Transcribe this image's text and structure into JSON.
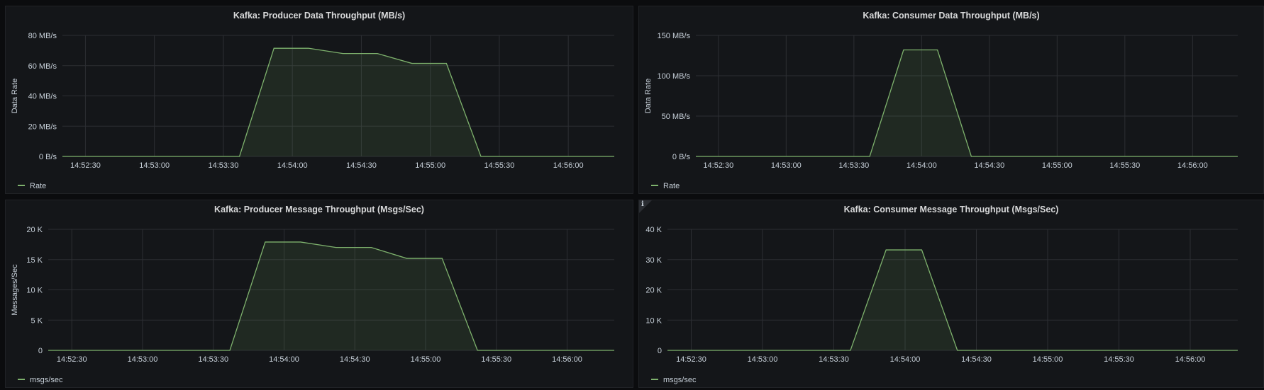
{
  "chart_data": [
    {
      "id": "producer-data",
      "type": "area",
      "title": "Kafka: Producer Data Throughput (MB/s)",
      "ylabel": "Data Rate",
      "y_ticks": [
        "0 B/s",
        "20 MB/s",
        "40 MB/s",
        "60 MB/s",
        "80 MB/s"
      ],
      "ylim": [
        0,
        80
      ],
      "x_ticks": [
        "14:52:30",
        "14:53:00",
        "14:53:30",
        "14:54:00",
        "14:54:30",
        "14:55:00",
        "14:55:30",
        "14:56:00"
      ],
      "series": [
        {
          "name": "Rate",
          "x": [
            "14:52:20",
            "14:53:37",
            "14:53:52",
            "14:54:07",
            "14:54:22",
            "14:54:37",
            "14:54:52",
            "14:55:07",
            "14:55:22",
            "14:56:20"
          ],
          "values": [
            0,
            0,
            71.5,
            71.5,
            68,
            68,
            61.5,
            61.5,
            0,
            0
          ]
        }
      ],
      "colors": {
        "line": "#7eb26d",
        "fill": "rgba(126,178,109,0.12)"
      },
      "legend": "bottom-left",
      "grid": true
    },
    {
      "id": "consumer-data",
      "type": "area",
      "title": "Kafka: Consumer Data Throughput (MB/s)",
      "ylabel": "Data Rate",
      "y_ticks": [
        "0 B/s",
        "50 MB/s",
        "100 MB/s",
        "150 MB/s"
      ],
      "ylim": [
        0,
        150
      ],
      "x_ticks": [
        "14:52:30",
        "14:53:00",
        "14:53:30",
        "14:54:00",
        "14:54:30",
        "14:55:00",
        "14:55:30",
        "14:56:00"
      ],
      "series": [
        {
          "name": "Rate",
          "x": [
            "14:52:20",
            "14:53:37",
            "14:53:52",
            "14:54:07",
            "14:54:22",
            "14:56:20"
          ],
          "values": [
            0,
            0,
            132,
            132,
            0,
            0
          ]
        }
      ],
      "colors": {
        "line": "#7eb26d",
        "fill": "rgba(126,178,109,0.12)"
      },
      "legend": "bottom-left",
      "grid": true
    },
    {
      "id": "producer-msgs",
      "type": "area",
      "title": "Kafka: Producer Message Throughput (Msgs/Sec)",
      "ylabel": "Messages/Sec",
      "y_ticks": [
        "0",
        "5 K",
        "10 K",
        "15 K",
        "20 K"
      ],
      "ylim": [
        0,
        20000
      ],
      "x_ticks": [
        "14:52:30",
        "14:53:00",
        "14:53:30",
        "14:54:00",
        "14:54:30",
        "14:55:00",
        "14:55:30",
        "14:56:00"
      ],
      "series": [
        {
          "name": "msgs/sec",
          "x": [
            "14:52:20",
            "14:53:37",
            "14:53:52",
            "14:54:07",
            "14:54:22",
            "14:54:37",
            "14:54:52",
            "14:55:07",
            "14:55:22",
            "14:56:20"
          ],
          "values": [
            0,
            0,
            17900,
            17900,
            17000,
            17000,
            15200,
            15200,
            0,
            0
          ]
        }
      ],
      "colors": {
        "line": "#7eb26d",
        "fill": "rgba(126,178,109,0.12)"
      },
      "legend": "bottom-left",
      "grid": true
    },
    {
      "id": "consumer-msgs",
      "type": "area",
      "title": "Kafka: Consumer Message Throughput (Msgs/Sec)",
      "ylabel": "",
      "y_ticks": [
        "0",
        "10 K",
        "20 K",
        "30 K",
        "40 K"
      ],
      "ylim": [
        0,
        40000
      ],
      "x_ticks": [
        "14:52:30",
        "14:53:00",
        "14:53:30",
        "14:54:00",
        "14:54:30",
        "14:55:00",
        "14:55:30",
        "14:56:00"
      ],
      "series": [
        {
          "name": "msgs/sec",
          "x": [
            "14:52:20",
            "14:53:37",
            "14:53:52",
            "14:54:07",
            "14:54:22",
            "14:56:20"
          ],
          "values": [
            0,
            0,
            33200,
            33200,
            0,
            0
          ]
        }
      ],
      "colors": {
        "line": "#7eb26d",
        "fill": "rgba(126,178,109,0.12)"
      },
      "legend": "bottom-left",
      "grid": true
    }
  ],
  "panels": {
    "consumer_msgs_info_icon": "ℹ"
  }
}
